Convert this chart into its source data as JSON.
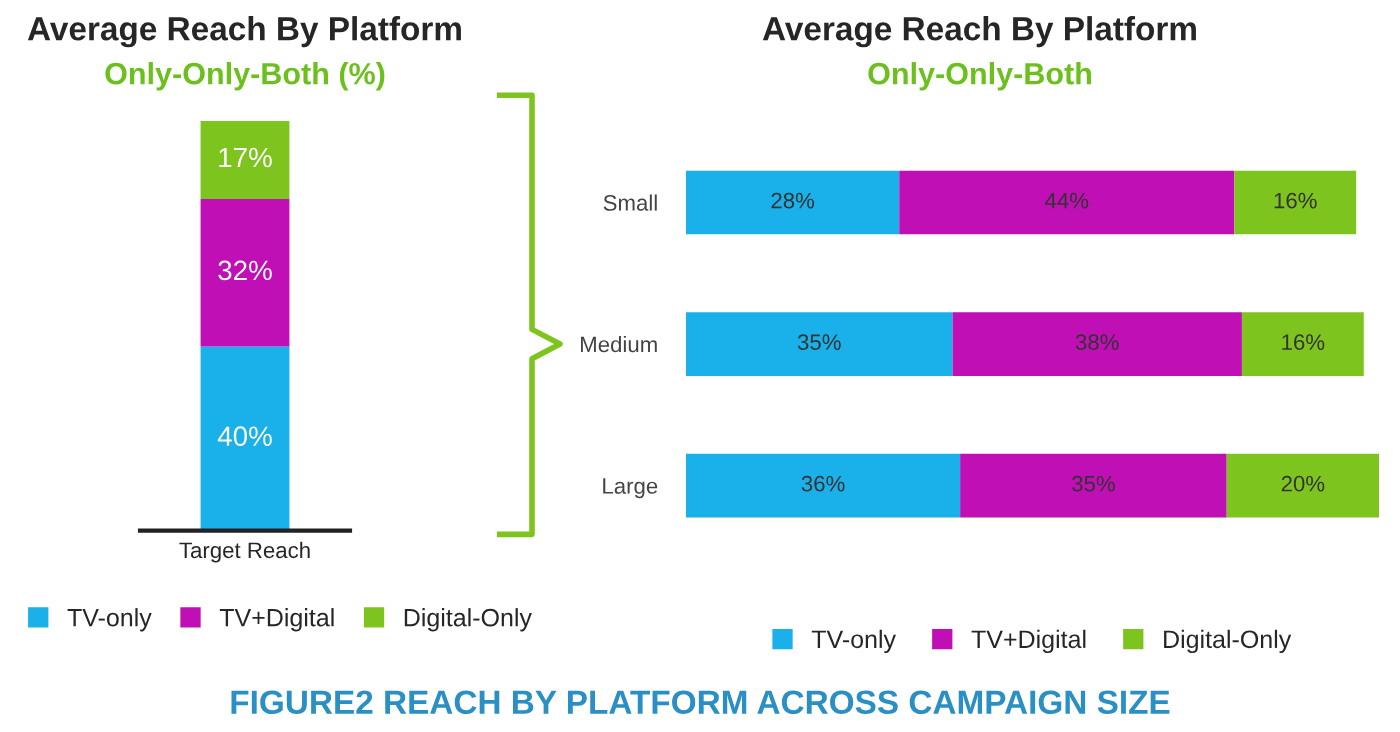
{
  "chart_data": [
    {
      "type": "bar",
      "stacked": true,
      "title": "Average Reach By Platform",
      "subtitle": "Only-Only-Both (%)",
      "categories": [
        "Target Reach"
      ],
      "legend": "bottom",
      "series": [
        {
          "name": "TV-only",
          "color": "#1ab0ea",
          "values": [
            40
          ],
          "value_labels": [
            "40%"
          ]
        },
        {
          "name": "TV+Digital",
          "color": "#c00fb4",
          "values": [
            32
          ],
          "value_labels": [
            "32%"
          ]
        },
        {
          "name": "Digital-Only",
          "color": "#7dc41e",
          "values": [
            17
          ],
          "value_labels": [
            "17%"
          ]
        }
      ],
      "annotations": [
        "FIGURE2 REACH BY PLATFORM ACROSS CAMPAIGN SIZE"
      ]
    },
    {
      "type": "bar",
      "stacked": true,
      "orientation": "horizontal",
      "title": "Average Reach By Platform",
      "subtitle": "Only-Only-Both",
      "categories": [
        "Small",
        "Medium",
        "Large"
      ],
      "legend": "bottom",
      "series": [
        {
          "name": "TV-only",
          "color": "#1ab0ea",
          "values": [
            28,
            35,
            36
          ],
          "value_labels": [
            "28%",
            "35%",
            "36%"
          ]
        },
        {
          "name": "TV+Digital",
          "color": "#c00fb4",
          "values": [
            44,
            38,
            35
          ],
          "value_labels": [
            "44%",
            "38%",
            "35%"
          ]
        },
        {
          "name": "Digital-Only",
          "color": "#7dc41e",
          "values": [
            16,
            16,
            20
          ],
          "value_labels": [
            "16%",
            "16%",
            "20%"
          ]
        }
      ]
    }
  ]
}
